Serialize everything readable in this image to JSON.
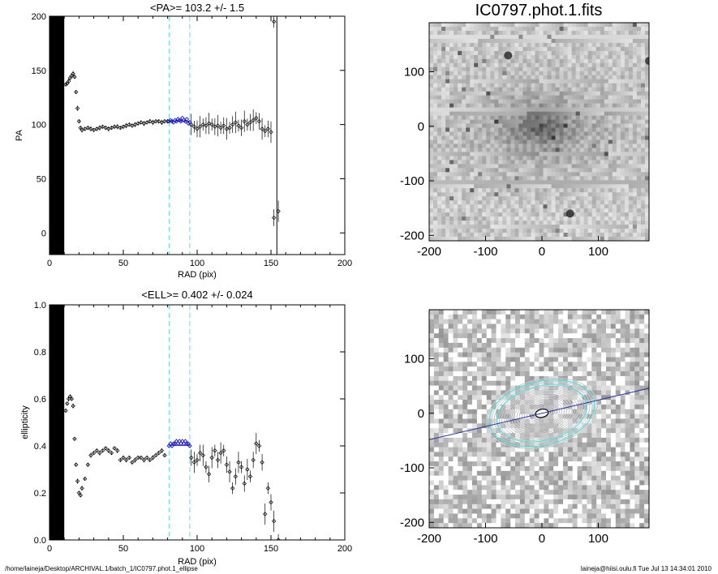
{
  "footer": {
    "path": "/home/laineja/Desktop/ARCHIVAL.1/batch_1/IC0797.phot.1_ellipse",
    "user_time": "laineja@hiisi.oulu.fi  Tue Jul 13 14:34:01 2010"
  },
  "colors": {
    "fit_points": "#1a1acc",
    "guide_lines": "#66dddd",
    "axes": "#000000",
    "major_axis_line": "#2233aa"
  },
  "chart_data": [
    {
      "id": "pa-profile",
      "type": "scatter",
      "title": "<PA>= 103.2 +/-   1.5",
      "xlabel": "RAD (pix)",
      "ylabel": "PA",
      "xlim": [
        0,
        200
      ],
      "ylim": [
        -20,
        200
      ],
      "xticks": [
        0,
        50,
        100,
        150,
        200
      ],
      "yticks": [
        0,
        50,
        100,
        150,
        200
      ],
      "guide_lines_x": [
        81,
        95
      ],
      "dense_band_x": [
        0,
        10
      ],
      "mean_value": 103.2,
      "vertical_line_x": 154,
      "points_black": [
        [
          11,
          137
        ],
        [
          12,
          138
        ],
        [
          13,
          140
        ],
        [
          14,
          143
        ],
        [
          15,
          145
        ],
        [
          16,
          147
        ],
        [
          17,
          144
        ],
        [
          18,
          130
        ],
        [
          19,
          115
        ],
        [
          20,
          103
        ],
        [
          21,
          97
        ],
        [
          22,
          95
        ],
        [
          24,
          96
        ],
        [
          26,
          97
        ],
        [
          28,
          96
        ],
        [
          30,
          95
        ],
        [
          32,
          96
        ],
        [
          34,
          97
        ],
        [
          36,
          98
        ],
        [
          38,
          97
        ],
        [
          40,
          96
        ],
        [
          42,
          97
        ],
        [
          44,
          98
        ],
        [
          46,
          98
        ],
        [
          48,
          97
        ],
        [
          50,
          98
        ],
        [
          52,
          99
        ],
        [
          54,
          100
        ],
        [
          56,
          99
        ],
        [
          58,
          100
        ],
        [
          60,
          101
        ],
        [
          62,
          102
        ],
        [
          64,
          101
        ],
        [
          66,
          102
        ],
        [
          68,
          103
        ],
        [
          70,
          102
        ],
        [
          72,
          103
        ],
        [
          74,
          103
        ],
        [
          76,
          102
        ],
        [
          78,
          103
        ],
        [
          80,
          103
        ],
        [
          96,
          100
        ],
        [
          98,
          98
        ],
        [
          100,
          96
        ],
        [
          102,
          98
        ],
        [
          104,
          100
        ],
        [
          106,
          99
        ],
        [
          108,
          101
        ],
        [
          110,
          100
        ],
        [
          112,
          98
        ],
        [
          114,
          99
        ],
        [
          116,
          97
        ],
        [
          118,
          99
        ],
        [
          120,
          96
        ],
        [
          122,
          97
        ],
        [
          124,
          100
        ],
        [
          126,
          102
        ],
        [
          128,
          99
        ],
        [
          130,
          97
        ],
        [
          132,
          103
        ],
        [
          134,
          100
        ],
        [
          136,
          102
        ],
        [
          138,
          104
        ],
        [
          140,
          106
        ],
        [
          142,
          103
        ],
        [
          144,
          96
        ],
        [
          146,
          94
        ],
        [
          148,
          96
        ],
        [
          150,
          93
        ],
        [
          152,
          195
        ],
        [
          152,
          14
        ],
        [
          155,
          20
        ]
      ],
      "points_fit": [
        [
          81,
          103
        ],
        [
          82,
          104
        ],
        [
          83,
          103
        ],
        [
          84,
          102
        ],
        [
          85,
          104
        ],
        [
          86,
          103
        ],
        [
          87,
          105
        ],
        [
          88,
          104
        ],
        [
          89,
          103
        ],
        [
          90,
          106
        ],
        [
          91,
          104
        ],
        [
          92,
          103
        ],
        [
          93,
          105
        ],
        [
          94,
          101
        ],
        [
          95,
          102
        ]
      ]
    },
    {
      "id": "ell-profile",
      "type": "scatter",
      "title": "<ELL>= 0.402 +/-  0.024",
      "xlabel": "RAD (pix)",
      "ylabel": "ellipticity",
      "xlim": [
        0,
        200
      ],
      "ylim": [
        0,
        1
      ],
      "xticks": [
        0,
        50,
        100,
        150,
        200
      ],
      "yticks": [
        0.0,
        0.2,
        0.4,
        0.6,
        0.8,
        1.0
      ],
      "guide_lines_x": [
        81,
        95
      ],
      "dense_band_x": [
        0,
        10
      ],
      "mean_value": 0.402,
      "points_black": [
        [
          11,
          0.55
        ],
        [
          12,
          0.58
        ],
        [
          13,
          0.6
        ],
        [
          14,
          0.61
        ],
        [
          15,
          0.6
        ],
        [
          16,
          0.57
        ],
        [
          17,
          0.43
        ],
        [
          18,
          0.32
        ],
        [
          19,
          0.25
        ],
        [
          20,
          0.2
        ],
        [
          21,
          0.19
        ],
        [
          22,
          0.22
        ],
        [
          24,
          0.26
        ],
        [
          26,
          0.32
        ],
        [
          28,
          0.36
        ],
        [
          30,
          0.37
        ],
        [
          32,
          0.38
        ],
        [
          34,
          0.37
        ],
        [
          36,
          0.38
        ],
        [
          38,
          0.39
        ],
        [
          40,
          0.38
        ],
        [
          42,
          0.37
        ],
        [
          44,
          0.39
        ],
        [
          46,
          0.38
        ],
        [
          48,
          0.34
        ],
        [
          50,
          0.35
        ],
        [
          52,
          0.34
        ],
        [
          54,
          0.35
        ],
        [
          56,
          0.33
        ],
        [
          58,
          0.34
        ],
        [
          60,
          0.35
        ],
        [
          62,
          0.35
        ],
        [
          64,
          0.34
        ],
        [
          66,
          0.35
        ],
        [
          68,
          0.34
        ],
        [
          70,
          0.35
        ],
        [
          72,
          0.36
        ],
        [
          74,
          0.37
        ],
        [
          76,
          0.38
        ],
        [
          78,
          0.36
        ],
        [
          96,
          0.35
        ],
        [
          98,
          0.33
        ],
        [
          100,
          0.34
        ],
        [
          102,
          0.37
        ],
        [
          104,
          0.36
        ],
        [
          106,
          0.31
        ],
        [
          108,
          0.28
        ],
        [
          110,
          0.35
        ],
        [
          112,
          0.38
        ],
        [
          114,
          0.34
        ],
        [
          116,
          0.37
        ],
        [
          118,
          0.38
        ],
        [
          120,
          0.32
        ],
        [
          122,
          0.29
        ],
        [
          124,
          0.22
        ],
        [
          126,
          0.27
        ],
        [
          128,
          0.33
        ],
        [
          130,
          0.31
        ],
        [
          132,
          0.24
        ],
        [
          134,
          0.3
        ],
        [
          136,
          0.27
        ],
        [
          138,
          0.34
        ],
        [
          140,
          0.41
        ],
        [
          142,
          0.4
        ],
        [
          144,
          0.33
        ],
        [
          146,
          0.11
        ],
        [
          148,
          0.22
        ],
        [
          150,
          0.16
        ],
        [
          152,
          0.08
        ],
        [
          155,
          0.0
        ]
      ],
      "points_fit": [
        [
          81,
          0.4
        ],
        [
          82,
          0.41
        ],
        [
          83,
          0.4
        ],
        [
          84,
          0.41
        ],
        [
          85,
          0.41
        ],
        [
          86,
          0.42
        ],
        [
          87,
          0.41
        ],
        [
          88,
          0.42
        ],
        [
          89,
          0.41
        ],
        [
          90,
          0.42
        ],
        [
          91,
          0.41
        ],
        [
          92,
          0.42
        ],
        [
          93,
          0.41
        ],
        [
          94,
          0.41
        ],
        [
          95,
          0.4
        ]
      ]
    },
    {
      "id": "galaxy-image",
      "type": "heatmap",
      "title": "IC0797.phot.1.fits",
      "xlim": [
        -200,
        190
      ],
      "ylim": [
        -210,
        190
      ],
      "xticks": [
        -200,
        -100,
        0,
        100
      ],
      "yticks": [
        -200,
        -100,
        0,
        100
      ],
      "source_center": [
        0,
        0
      ],
      "star_positions": [
        [
          50,
          -160
        ],
        [
          -60,
          130
        ],
        [
          190,
          120
        ]
      ]
    },
    {
      "id": "isophote-image",
      "type": "heatmap",
      "title": "",
      "xlim": [
        -200,
        190
      ],
      "ylim": [
        -210,
        190
      ],
      "xticks": [
        -200,
        -100,
        0,
        100
      ],
      "yticks": [
        -200,
        -100,
        0,
        100
      ],
      "ellipse_count": 22,
      "max_semi_major_axis": 100,
      "position_angle_deg": 103.2,
      "ellipticity": 0.402,
      "fit_ring_radii": [
        81,
        95
      ]
    }
  ]
}
